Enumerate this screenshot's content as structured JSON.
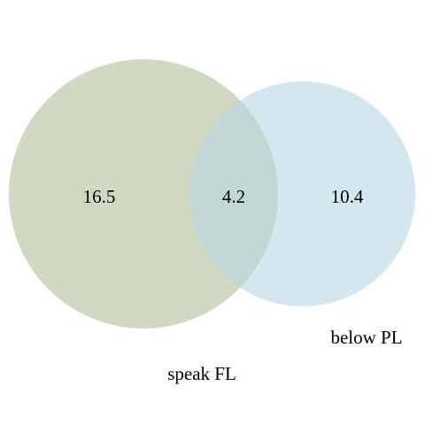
{
  "chart_data": {
    "type": "venn",
    "sets": [
      {
        "name": "speak FL",
        "value": 16.5,
        "color": "#b2bf9c"
      },
      {
        "name": "below PL",
        "value": 10.4,
        "color": "#b8d5e2"
      }
    ],
    "intersection": {
      "value": 4.2
    },
    "labels": {
      "set_a": "speak FL",
      "set_b": "below PL"
    },
    "values_text": {
      "a_only": "16.5",
      "overlap": "4.2",
      "b_only": "10.4"
    }
  }
}
